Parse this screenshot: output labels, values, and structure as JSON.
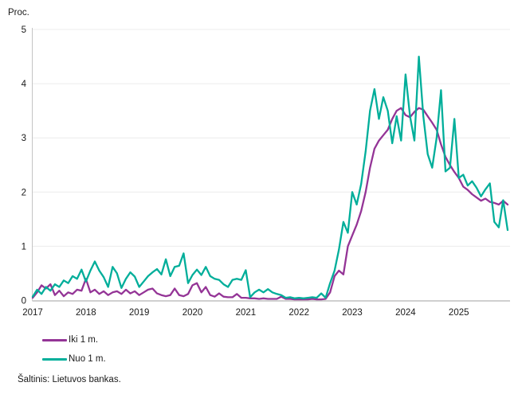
{
  "chart": {
    "y_axis_title": "Proc.",
    "source": "Šaltinis: Lietuvos bankas.",
    "legend": [
      {
        "label": "Iki 1 m.",
        "color": "#943496"
      },
      {
        "label": "Nuo 1 m.",
        "color": "#00AE9A"
      }
    ],
    "colors": {
      "grid": "#ececec",
      "axis_left": "#c4c4c4",
      "axis_bottom": "#b3b3b3",
      "text": "#1a1a1a"
    }
  },
  "chart_data": {
    "type": "line",
    "title": "",
    "ylabel": "Proc.",
    "ylim": [
      0,
      5
    ],
    "y_ticks": [
      "0",
      "1",
      "2",
      "3",
      "4",
      "5"
    ],
    "x_tick_labels": [
      "2017",
      "2018",
      "2019",
      "2020",
      "2021",
      "2022",
      "2023",
      "2024",
      "2025"
    ],
    "frequency": "monthly",
    "x_start": "2017-01",
    "x_end": "2025-12",
    "grid": "horizontal",
    "legend_position": "bottom-left",
    "series": [
      {
        "name": "Iki 1 m.",
        "color": "#943496",
        "values": [
          0.05,
          0.15,
          0.28,
          0.22,
          0.3,
          0.1,
          0.18,
          0.08,
          0.15,
          0.12,
          0.2,
          0.18,
          0.4,
          0.15,
          0.2,
          0.12,
          0.17,
          0.1,
          0.15,
          0.17,
          0.12,
          0.2,
          0.13,
          0.17,
          0.1,
          0.15,
          0.2,
          0.22,
          0.13,
          0.1,
          0.08,
          0.1,
          0.22,
          0.1,
          0.08,
          0.12,
          0.28,
          0.32,
          0.15,
          0.25,
          0.1,
          0.07,
          0.13,
          0.07,
          0.06,
          0.06,
          0.12,
          0.05,
          0.05,
          0.04,
          0.04,
          0.03,
          0.04,
          0.03,
          0.03,
          0.03,
          0.07,
          0.03,
          0.03,
          0.02,
          0.02,
          0.02,
          0.02,
          0.03,
          0.02,
          0.02,
          0.03,
          0.15,
          0.45,
          0.55,
          0.48,
          1.0,
          1.2,
          1.4,
          1.65,
          2.0,
          2.45,
          2.8,
          2.95,
          3.05,
          3.15,
          3.35,
          3.5,
          3.55,
          3.42,
          3.38,
          3.48,
          3.55,
          3.52,
          3.4,
          3.28,
          3.15,
          2.88,
          2.65,
          2.5,
          2.37,
          2.26,
          2.1,
          2.04,
          1.96,
          1.9,
          1.84,
          1.88,
          1.82,
          1.8,
          1.77,
          1.84,
          1.77
        ]
      },
      {
        "name": "Nuo 1 m.",
        "color": "#00AE9A",
        "values": [
          0.07,
          0.2,
          0.12,
          0.25,
          0.18,
          0.3,
          0.25,
          0.37,
          0.32,
          0.45,
          0.4,
          0.57,
          0.35,
          0.55,
          0.72,
          0.55,
          0.43,
          0.25,
          0.62,
          0.5,
          0.23,
          0.4,
          0.52,
          0.44,
          0.25,
          0.35,
          0.45,
          0.52,
          0.58,
          0.48,
          0.76,
          0.45,
          0.62,
          0.64,
          0.87,
          0.32,
          0.47,
          0.57,
          0.47,
          0.62,
          0.45,
          0.4,
          0.38,
          0.3,
          0.25,
          0.38,
          0.4,
          0.38,
          0.56,
          0.06,
          0.15,
          0.2,
          0.15,
          0.21,
          0.15,
          0.12,
          0.1,
          0.05,
          0.06,
          0.04,
          0.05,
          0.04,
          0.05,
          0.06,
          0.05,
          0.13,
          0.05,
          0.32,
          0.55,
          0.94,
          1.45,
          1.25,
          2.0,
          1.77,
          2.15,
          2.75,
          3.5,
          3.9,
          3.35,
          3.75,
          3.5,
          2.9,
          3.4,
          2.95,
          4.17,
          3.4,
          2.95,
          4.5,
          3.4,
          2.7,
          2.45,
          3.0,
          3.88,
          2.38,
          2.45,
          3.35,
          2.26,
          2.32,
          2.12,
          2.2,
          2.08,
          1.92,
          2.05,
          2.16,
          1.45,
          1.35,
          1.85,
          1.3
        ]
      }
    ]
  }
}
